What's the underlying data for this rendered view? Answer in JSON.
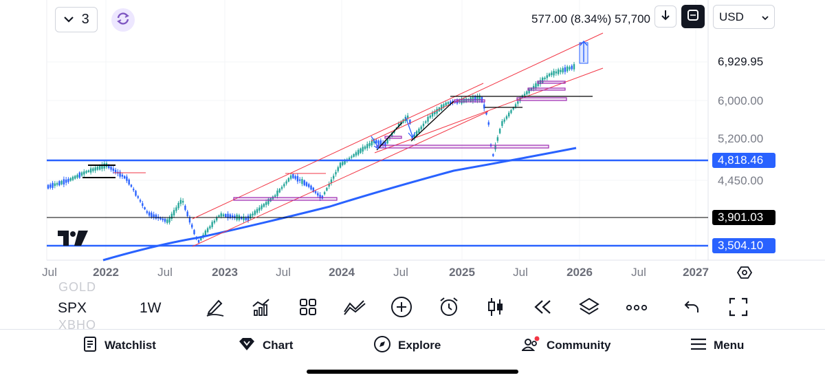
{
  "header": {
    "interval_value": "3",
    "stats_text": "577.00 (8.34%) 57,700",
    "currency": "USD"
  },
  "price_scale": {
    "labels": [
      {
        "text": "6,929.95",
        "style": "plain"
      },
      {
        "text": "6,000.00",
        "style": "faded"
      },
      {
        "text": "5,200.00",
        "style": "faded"
      },
      {
        "text": "4,818.46",
        "style": "blue"
      },
      {
        "text": "4,450.00",
        "style": "faded"
      },
      {
        "text": "3,901.03",
        "style": "black"
      },
      {
        "text": "3,504.10",
        "style": "blue"
      }
    ]
  },
  "time_axis": {
    "labels": [
      "Jul",
      "2022",
      "Jul",
      "2023",
      "Jul",
      "2024",
      "Jul",
      "2025",
      "Jul",
      "2026",
      "Jul",
      "2027"
    ]
  },
  "toolbar": {
    "ghost_top": "GOLD",
    "symbol": "SPX",
    "ghost_bottom": "XBHO",
    "timeframe": "1W"
  },
  "bottom_nav": {
    "watchlist": "Watchlist",
    "chart": "Chart",
    "explore": "Explore",
    "community": "Community",
    "menu": "Menu"
  },
  "colors": {
    "candle_up": "#26a69a",
    "candle_down": "#2962ff",
    "horizontal_line": "#2962ff",
    "channel_line": "#f23645",
    "moving_average": "#2962ff",
    "highlight_rect": "#9c27b0"
  },
  "chart_data": {
    "type": "line",
    "symbol": "SPX",
    "interval": "1W",
    "series": [
      {
        "x": [
          "2021-09",
          "2022-01",
          "2022-06",
          "2022-10",
          "2023-02",
          "2023-07",
          "2023-10",
          "2024-03",
          "2024-07",
          "2024-08",
          "2024-12",
          "2025-04",
          "2025-07",
          "2025-11"
        ],
        "values": [
          4400,
          4800,
          3750,
          3580,
          4100,
          4580,
          4120,
          5200,
          5650,
          5150,
          6090,
          4900,
          6250,
          6900
        ]
      }
    ],
    "horizontal_levels": [
      4818.46,
      3901.03,
      3504.1
    ],
    "last_price": 6929.95,
    "ylim": [
      3400,
      7300
    ]
  }
}
